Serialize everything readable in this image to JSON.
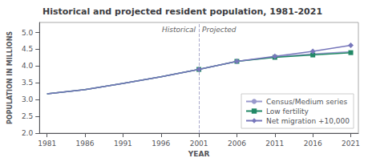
{
  "chart_data": {
    "type": "line",
    "title": "Historical and projected resident population, 1981-2021",
    "x_label": "YEAR",
    "y_label": "POPULATION IN MILLIONS",
    "x": [
      1981,
      1986,
      1991,
      1996,
      2001,
      2006,
      2011,
      2016,
      2021
    ],
    "series": [
      {
        "name": "Census/Medium series",
        "color": "#9999cc",
        "values": [
          3.17,
          3.3,
          3.48,
          3.68,
          3.9,
          4.14,
          4.27,
          4.36,
          4.43
        ]
      },
      {
        "name": "Low fertility",
        "color": "#228866",
        "marker": "square",
        "values": [
          3.17,
          3.3,
          3.48,
          3.68,
          3.9,
          4.14,
          4.26,
          4.33,
          4.4
        ]
      },
      {
        "name": "Net migration +10,000",
        "color": "#7777bb",
        "marker": "diamond",
        "values": [
          3.17,
          3.3,
          3.48,
          3.68,
          3.9,
          4.14,
          4.29,
          4.44,
          4.62
        ]
      }
    ],
    "xlim": [
      1980,
      2022
    ],
    "xticks": [
      1981,
      1986,
      1991,
      1996,
      2001,
      2006,
      2011,
      2016,
      2021
    ],
    "ylim": [
      2.0,
      5.3
    ],
    "yticks": [
      {
        "value": 2.0,
        "label": "2.0"
      },
      2.5,
      {
        "value": 3.0,
        "label": "3.0"
      },
      3.5,
      {
        "value": 4.0,
        "label": "4.0"
      },
      4.5,
      {
        "value": 5.0,
        "label": "5.0"
      }
    ],
    "grid": false,
    "legend": "lower right",
    "annotations": [
      {
        "x": 2001,
        "line_style": "dashed",
        "color": "#aaaacc",
        "labels": [
          "Historical",
          "Projected"
        ]
      }
    ]
  }
}
